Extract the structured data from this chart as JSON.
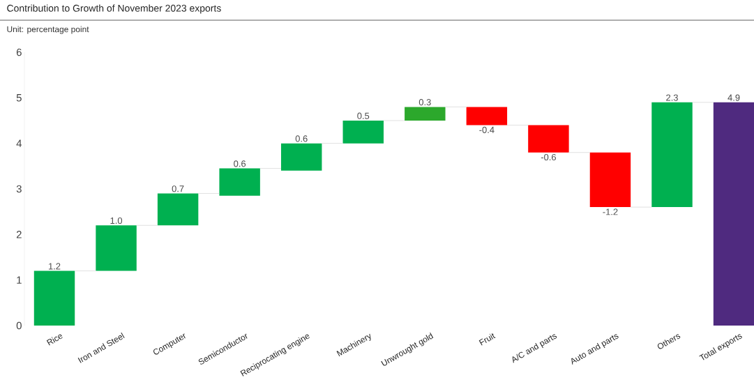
{
  "chart_data": {
    "type": "bar",
    "title": "Contribution to Growth of November 2023 exports",
    "subtitle": "Unit: percentage point",
    "categories": [
      "Rice",
      "Iron and Steel",
      "Computer",
      "Semiconductor",
      "Reciprocating engine",
      "Machinery",
      "Unwrought gold",
      "Fruit",
      "A/C and parts",
      "Auto and parts",
      "Others",
      "Total exports"
    ],
    "values": [
      1.2,
      1.0,
      0.7,
      0.6,
      0.6,
      0.5,
      0.3,
      -0.4,
      -0.6,
      -1.2,
      2.3,
      4.9
    ],
    "base": [
      0,
      1.2,
      2.2,
      2.85,
      3.4,
      4.0,
      4.5,
      4.8,
      4.4,
      3.8,
      2.6,
      0
    ],
    "value_labels": [
      "1.2",
      "1.0",
      "0.7",
      "0.6",
      "0.6",
      "0.5",
      "0.3",
      "-0.4",
      "-0.6",
      "-1.2",
      "2.3",
      "4.9"
    ],
    "colors": [
      "#00b050",
      "#00b050",
      "#00b050",
      "#00b050",
      "#00b050",
      "#00b050",
      "#2ca82c",
      "#ff0000",
      "#ff0000",
      "#ff0000",
      "#00b050",
      "#4f2a7f"
    ],
    "ylim": [
      0,
      6
    ],
    "yticks": [
      0,
      1,
      2,
      3,
      4,
      5,
      6
    ],
    "grid": false
  }
}
